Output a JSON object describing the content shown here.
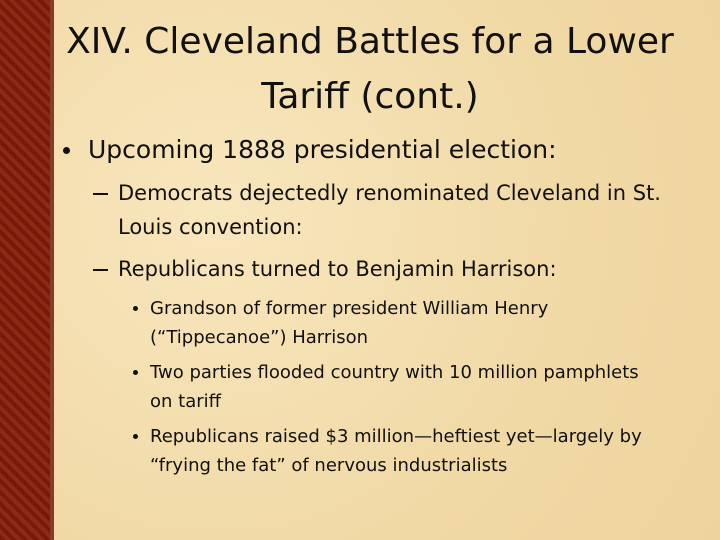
{
  "slide": {
    "title": {
      "lines": [
        "XIV. Cleveland Battles for a Lower",
        "Tariff (cont.)"
      ]
    },
    "bullets": [
      {
        "text": "Upcoming 1888 presidential election:",
        "children": [
          {
            "text": "Democrats dejectedly renominated Cleveland in St. Louis convention:",
            "children": []
          },
          {
            "text": "Republicans turned to Benjamin Harrison:",
            "children": [
              {
                "text": "Grandson of former president William Henry (“Tippecanoe”) Harrison"
              },
              {
                "text": "Two parties flooded country with 10 million pamphlets on tariff"
              },
              {
                "text": "Republicans raised $3 million—heftiest yet—largely by “frying the fat” of nervous industrialists"
              }
            ]
          }
        ]
      }
    ]
  }
}
